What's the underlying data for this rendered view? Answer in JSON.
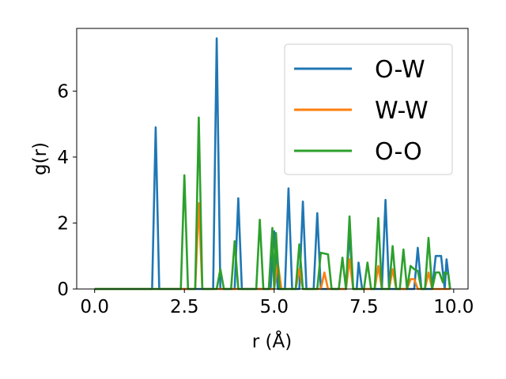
{
  "chart_data": {
    "type": "line",
    "xlabel": "r (Å)",
    "ylabel": "g(r)",
    "xlim": [
      -0.5,
      10.4
    ],
    "ylim": [
      0,
      7.9
    ],
    "xticks": [
      0.0,
      2.5,
      5.0,
      7.5,
      10.0
    ],
    "xtick_labels": [
      "0.0",
      "2.5",
      "5.0",
      "7.5",
      "10.0"
    ],
    "yticks": [
      0,
      2,
      4,
      6
    ],
    "ytick_labels": [
      "0",
      "2",
      "4",
      "6"
    ],
    "grid": false,
    "legend_position": "top-right",
    "series": [
      {
        "name": "O-W",
        "color": "#1f77b4",
        "points": [
          [
            0,
            0
          ],
          [
            1.6,
            0
          ],
          [
            1.7,
            4.9
          ],
          [
            1.8,
            0
          ],
          [
            3.3,
            0
          ],
          [
            3.4,
            7.6
          ],
          [
            3.5,
            0
          ],
          [
            3.9,
            0
          ],
          [
            4.0,
            2.75
          ],
          [
            4.1,
            0
          ],
          [
            4.9,
            0
          ],
          [
            5.0,
            1.75
          ],
          [
            5.1,
            0
          ],
          [
            5.3,
            0
          ],
          [
            5.4,
            3.05
          ],
          [
            5.5,
            0
          ],
          [
            5.7,
            0
          ],
          [
            5.8,
            2.65
          ],
          [
            5.9,
            0
          ],
          [
            6.1,
            0
          ],
          [
            6.2,
            2.3
          ],
          [
            6.3,
            0
          ],
          [
            7.0,
            0
          ],
          [
            7.1,
            1.7
          ],
          [
            7.2,
            0
          ],
          [
            7.3,
            0
          ],
          [
            7.35,
            0.8
          ],
          [
            7.45,
            0
          ],
          [
            8.0,
            0
          ],
          [
            8.1,
            2.7
          ],
          [
            8.2,
            0
          ],
          [
            8.9,
            0
          ],
          [
            9.0,
            1.25
          ],
          [
            9.1,
            0
          ],
          [
            9.4,
            0
          ],
          [
            9.5,
            1.0
          ],
          [
            9.65,
            1.0
          ],
          [
            9.75,
            0
          ],
          [
            9.8,
            0.9
          ],
          [
            9.9,
            0
          ]
        ]
      },
      {
        "name": "W-W",
        "color": "#ff7f0e",
        "points": [
          [
            0,
            0
          ],
          [
            2.8,
            0
          ],
          [
            2.9,
            2.6
          ],
          [
            3.0,
            0
          ],
          [
            5.0,
            0
          ],
          [
            5.1,
            0.8
          ],
          [
            5.2,
            0
          ],
          [
            5.6,
            0
          ],
          [
            5.7,
            0.6
          ],
          [
            5.8,
            0
          ],
          [
            6.3,
            0
          ],
          [
            6.4,
            0.5
          ],
          [
            6.5,
            0
          ],
          [
            7.0,
            0
          ],
          [
            7.1,
            0.9
          ],
          [
            7.2,
            0
          ],
          [
            7.8,
            0
          ],
          [
            7.9,
            0.7
          ],
          [
            8.0,
            0
          ],
          [
            8.2,
            0
          ],
          [
            8.3,
            0.6
          ],
          [
            8.4,
            0
          ],
          [
            8.7,
            0
          ],
          [
            8.8,
            0.3
          ],
          [
            8.9,
            0.3
          ],
          [
            9.0,
            0
          ],
          [
            9.2,
            0
          ],
          [
            9.3,
            0.5
          ],
          [
            9.4,
            0
          ],
          [
            9.9,
            0
          ]
        ]
      },
      {
        "name": "O-O",
        "color": "#2ca02c",
        "points": [
          [
            0,
            0
          ],
          [
            2.4,
            0
          ],
          [
            2.5,
            3.45
          ],
          [
            2.6,
            0
          ],
          [
            2.8,
            0
          ],
          [
            2.9,
            5.2
          ],
          [
            3.0,
            0
          ],
          [
            3.4,
            0
          ],
          [
            3.5,
            0.6
          ],
          [
            3.6,
            0
          ],
          [
            3.8,
            0
          ],
          [
            3.9,
            1.45
          ],
          [
            4.0,
            0
          ],
          [
            4.5,
            0
          ],
          [
            4.6,
            2.1
          ],
          [
            4.7,
            0
          ],
          [
            4.85,
            0
          ],
          [
            4.95,
            1.85
          ],
          [
            5.0,
            0
          ],
          [
            5.05,
            1.7
          ],
          [
            5.15,
            0
          ],
          [
            5.6,
            0
          ],
          [
            5.7,
            1.35
          ],
          [
            5.8,
            0
          ],
          [
            6.2,
            0
          ],
          [
            6.3,
            1.1
          ],
          [
            6.5,
            1.05
          ],
          [
            6.6,
            0
          ],
          [
            6.8,
            0
          ],
          [
            6.9,
            0.95
          ],
          [
            7.0,
            0
          ],
          [
            7.1,
            2.2
          ],
          [
            7.2,
            0
          ],
          [
            7.5,
            0
          ],
          [
            7.6,
            0.8
          ],
          [
            7.7,
            0
          ],
          [
            7.8,
            0
          ],
          [
            7.9,
            2.15
          ],
          [
            8.0,
            0
          ],
          [
            8.1,
            0
          ],
          [
            8.2,
            0
          ],
          [
            8.3,
            1.3
          ],
          [
            8.4,
            0
          ],
          [
            8.5,
            0
          ],
          [
            8.6,
            1.2
          ],
          [
            8.7,
            0
          ],
          [
            8.8,
            0.7
          ],
          [
            8.9,
            0.6
          ],
          [
            9.0,
            0.55
          ],
          [
            9.1,
            0
          ],
          [
            9.2,
            0
          ],
          [
            9.3,
            1.55
          ],
          [
            9.4,
            0
          ],
          [
            9.5,
            0.5
          ],
          [
            9.6,
            0.5
          ],
          [
            9.7,
            0.2
          ],
          [
            9.75,
            0.5
          ],
          [
            9.85,
            0.45
          ],
          [
            9.9,
            0
          ]
        ]
      }
    ]
  }
}
